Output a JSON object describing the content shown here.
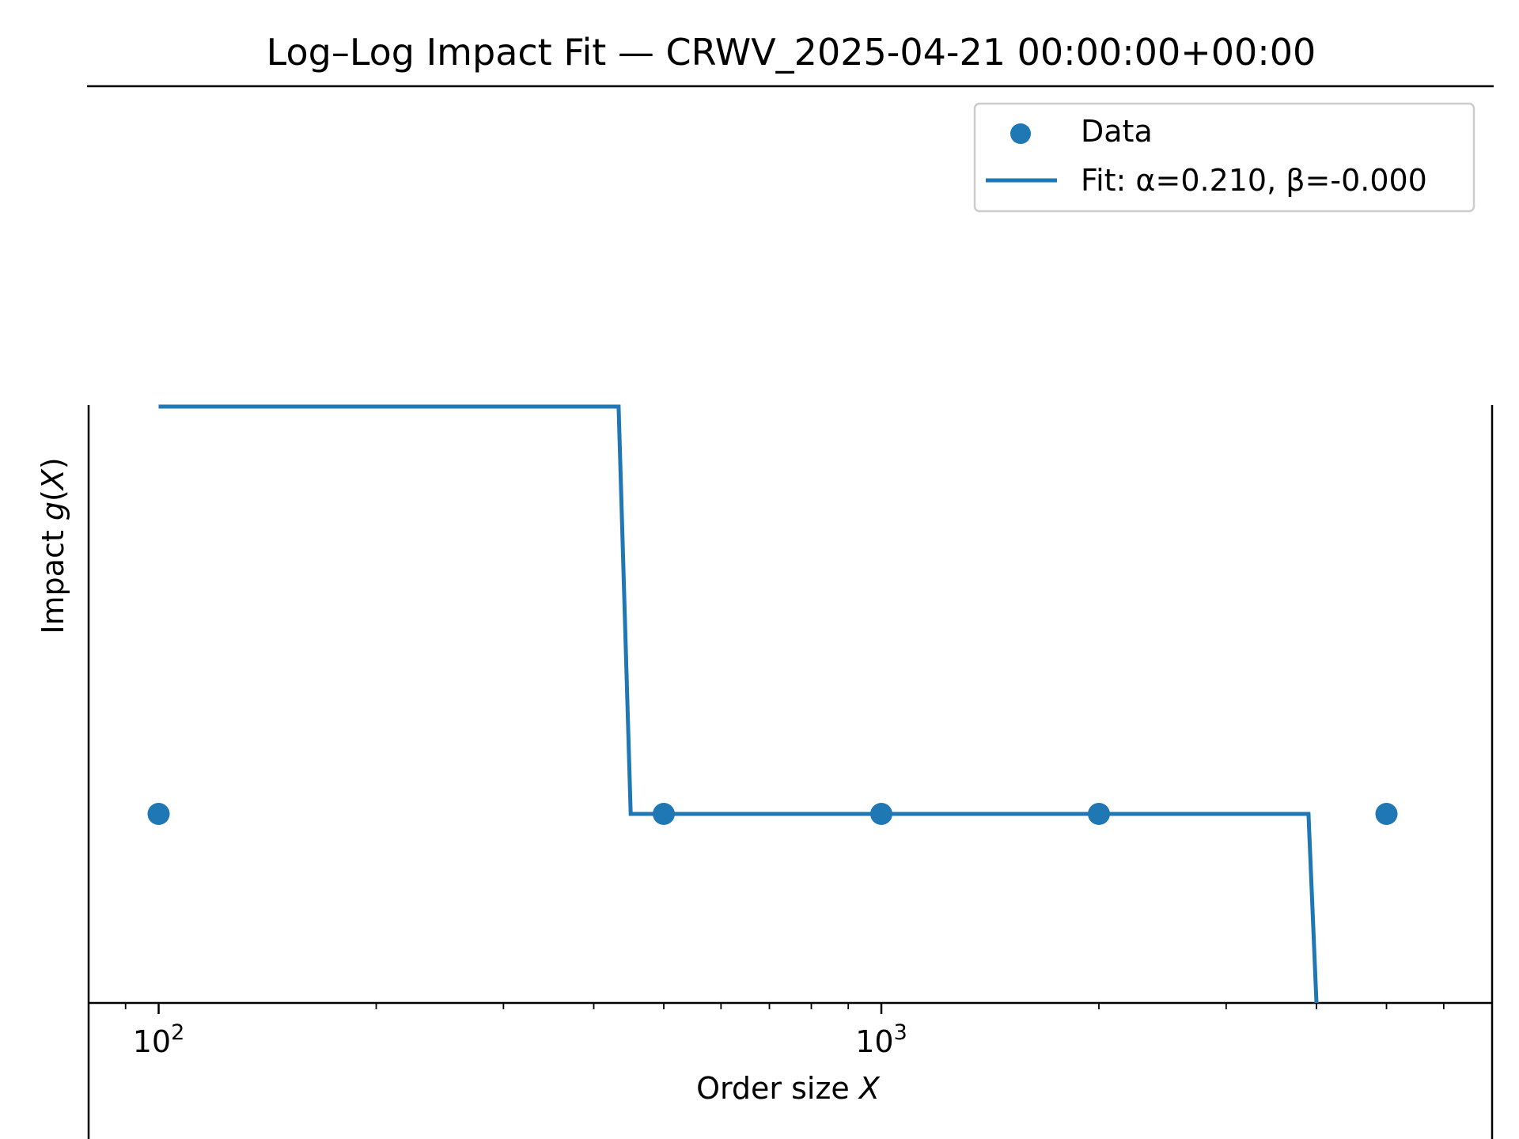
{
  "chart_data": {
    "type": "scatter",
    "title": "Log–Log Impact Fit — CRWV_2025-04-21 00:00:00+00:00",
    "xlabel": {
      "prefix": "Order size ",
      "var": "X"
    },
    "ylabel": {
      "prefix": "Impact ",
      "var": "g",
      "paren_open": "(",
      "arg": "X",
      "paren_close": ")"
    },
    "x_scale": "log",
    "y_scale": "log",
    "xlim": [
      80,
      7000
    ],
    "x_ticks": [
      {
        "base": "10",
        "exp": "2",
        "value": 100
      },
      {
        "base": "10",
        "exp": "3",
        "value": 1000
      }
    ],
    "grid": false,
    "legend_position": "upper-right",
    "colors": {
      "series": "#1f77b4"
    },
    "series": [
      {
        "name": "Data",
        "kind": "scatter",
        "x": [
          100,
          500,
          1000,
          2000,
          5000
        ],
        "y": [
          "level_2",
          "level_2",
          "level_2",
          "level_2",
          "level_2"
        ]
      },
      {
        "name": "Fit: α=0.210, β=-0.000",
        "kind": "line",
        "x": [
          100,
          433,
          450,
          3900,
          4000
        ],
        "y": [
          "level_1",
          "level_1",
          "level_2",
          "level_2",
          "level_3"
        ]
      }
    ]
  }
}
